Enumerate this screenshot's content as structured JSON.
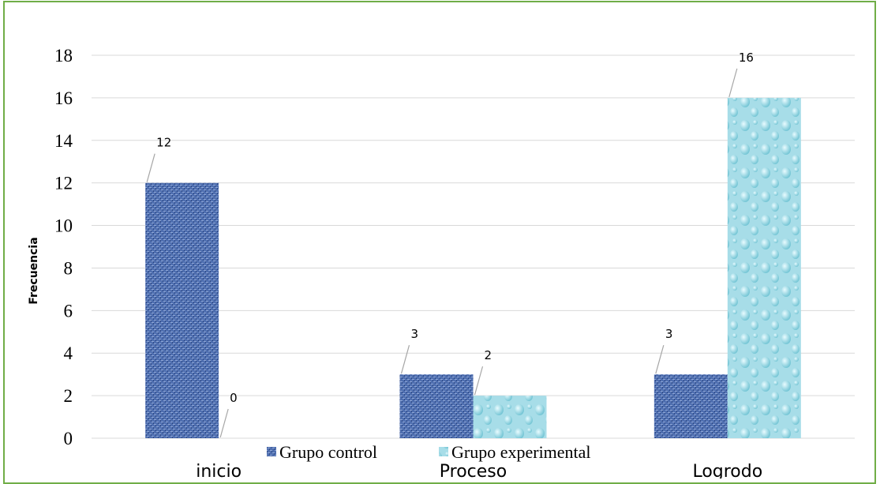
{
  "chart_data": {
    "type": "bar",
    "ylabel": "Frecuencia",
    "xlabel": "",
    "categories": [
      "inicio",
      "Proceso",
      "Logrodo"
    ],
    "series": [
      {
        "name": "Grupo control",
        "values": [
          12,
          3,
          3
        ],
        "color": "#4a6aad"
      },
      {
        "name": "Grupo experimental",
        "values": [
          0,
          2,
          16
        ],
        "color": "#9fdbe6"
      }
    ],
    "ylim": [
      0,
      18
    ],
    "yticks": [
      0,
      2,
      4,
      6,
      8,
      10,
      12,
      14,
      16,
      18
    ],
    "grid": true,
    "legend": "bottom",
    "data_labels": true,
    "frame_color": "#70ad47"
  }
}
